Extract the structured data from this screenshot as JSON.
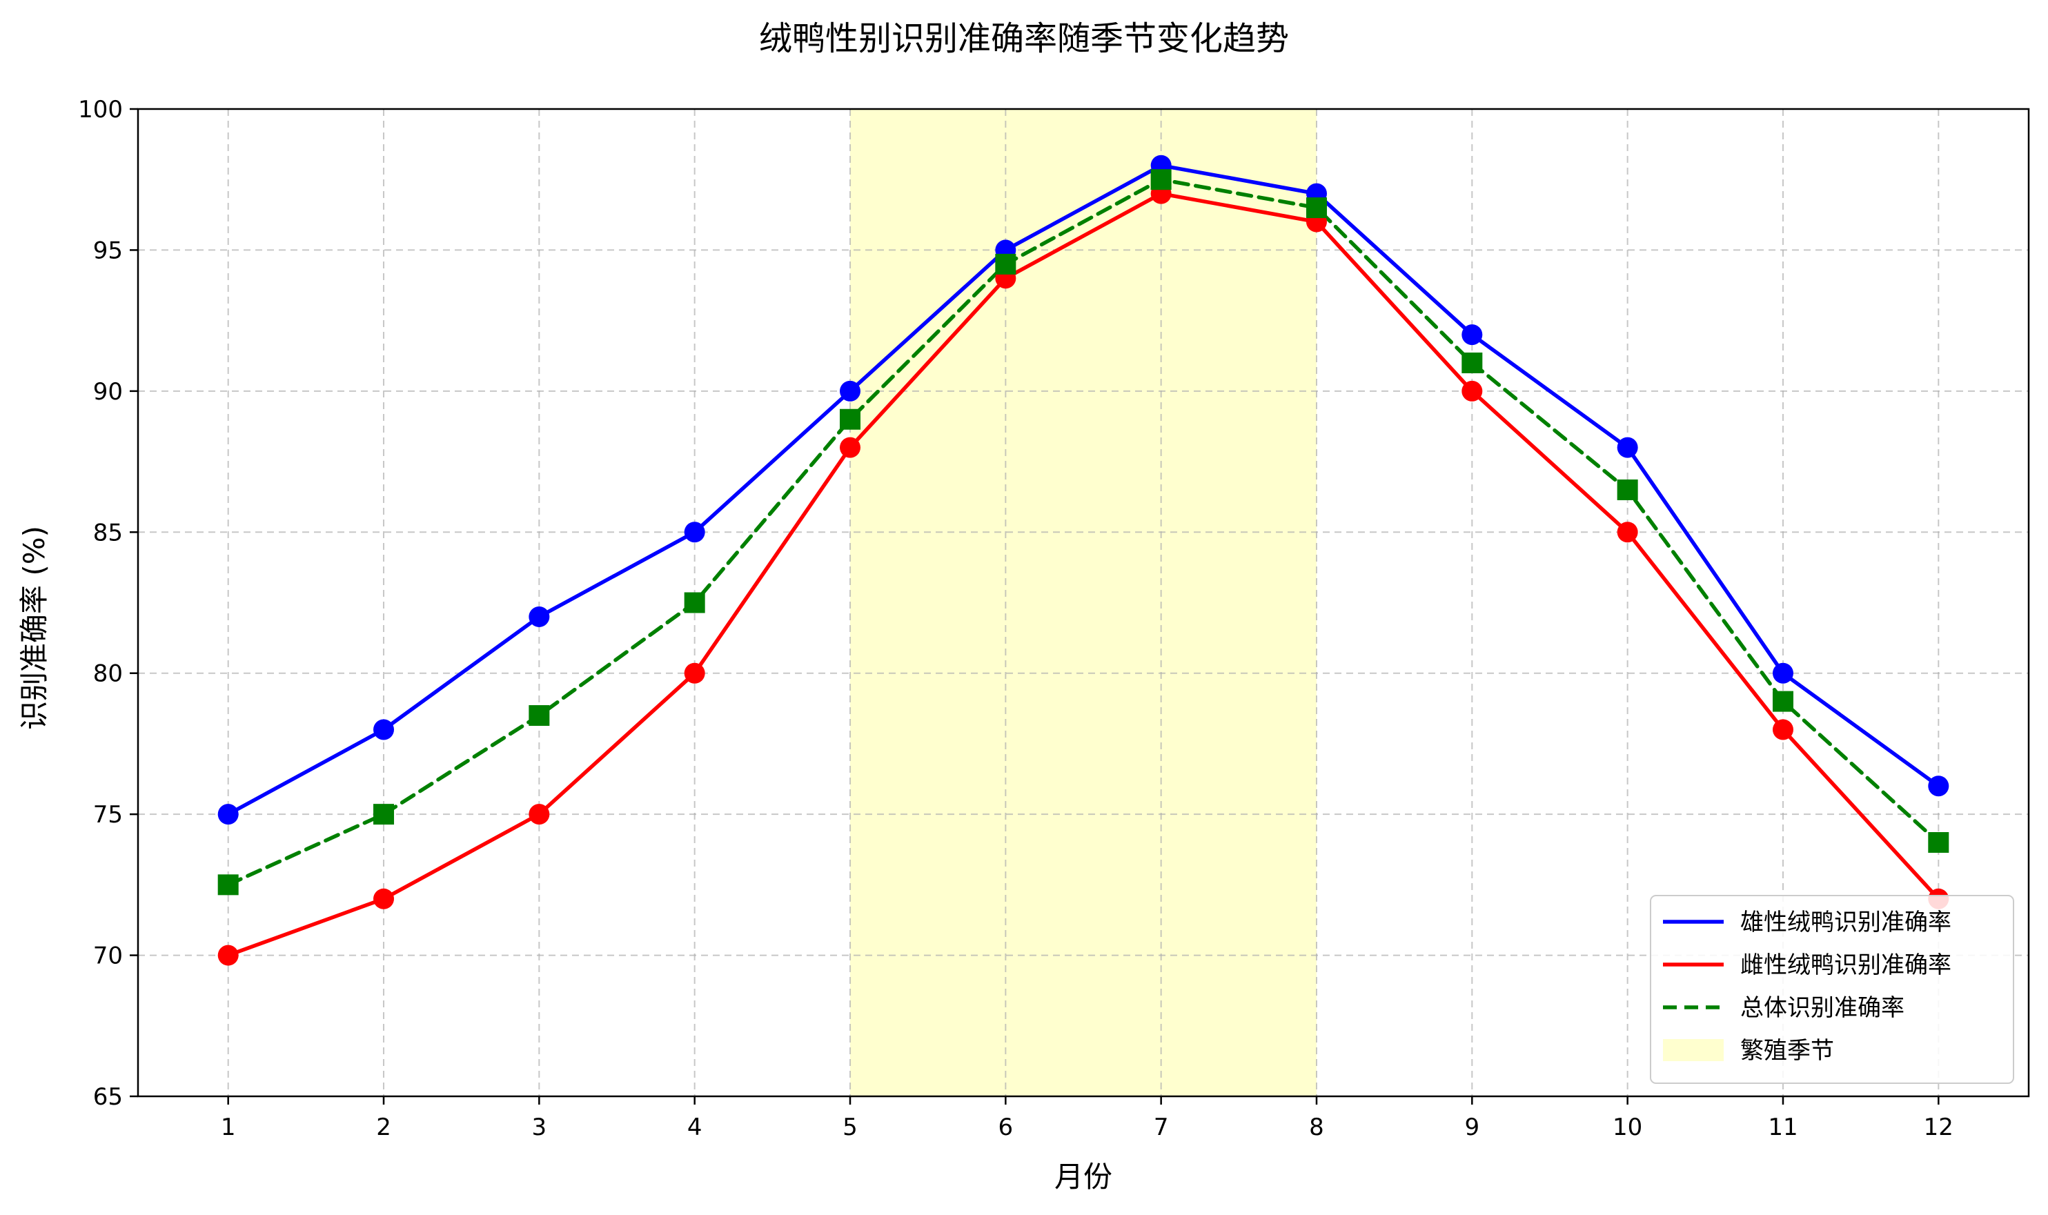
{
  "chart_data": {
    "type": "line",
    "title": "绒鸭性别识别准确率随季节变化趋势",
    "xlabel": "月份",
    "ylabel": "识别准确率 (%)",
    "x": [
      1,
      2,
      3,
      4,
      5,
      6,
      7,
      8,
      9,
      10,
      11,
      12
    ],
    "x_tick_labels": [
      "1",
      "2",
      "3",
      "4",
      "5",
      "6",
      "7",
      "8",
      "9",
      "10",
      "11",
      "12"
    ],
    "xlim": [
      0.42,
      12.58
    ],
    "ylim": [
      65,
      100
    ],
    "y_ticks": [
      65,
      70,
      75,
      80,
      85,
      90,
      95,
      100
    ],
    "y_tick_labels": [
      "65",
      "70",
      "75",
      "80",
      "85",
      "90",
      "95",
      "100"
    ],
    "grid": true,
    "legend_position": "lower-right",
    "series": [
      {
        "name": "雄性绒鸭识别准确率",
        "values": [
          75,
          78,
          82,
          85,
          90,
          95,
          98,
          97,
          92,
          88,
          80,
          76
        ],
        "color": "#0000ff",
        "style": "solid",
        "marker": "circle"
      },
      {
        "name": "雌性绒鸭识别准确率",
        "values": [
          70,
          72,
          75,
          80,
          88,
          94,
          97,
          96,
          90,
          85,
          78,
          72
        ],
        "color": "#ff0000",
        "style": "solid",
        "marker": "circle"
      },
      {
        "name": "总体识别准确率",
        "values": [
          72.5,
          75,
          78.5,
          82.5,
          89,
          94.5,
          97.5,
          96.5,
          91,
          86.5,
          79,
          74
        ],
        "color": "#008000",
        "style": "dashed",
        "marker": "square"
      }
    ],
    "shaded_region": {
      "name": "繁殖季节",
      "x_start": 5,
      "x_end": 8,
      "color": "#ffffcc"
    }
  }
}
